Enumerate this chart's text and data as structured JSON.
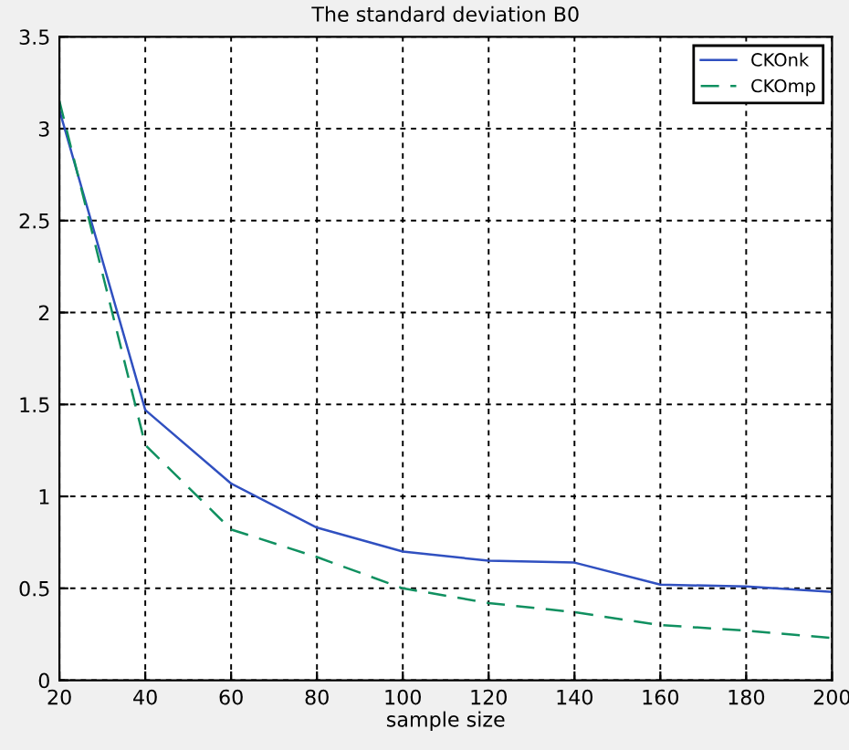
{
  "chart_data": {
    "type": "line",
    "title": "The standard deviation B0",
    "xlabel": "sample size",
    "x": [
      20,
      40,
      60,
      80,
      100,
      120,
      140,
      160,
      180,
      200
    ],
    "series": [
      {
        "name": "CKOnk",
        "color": "#3050c0",
        "line_style": "solid",
        "values": [
          3.1,
          1.47,
          1.07,
          0.83,
          0.7,
          0.65,
          0.64,
          0.52,
          0.51,
          0.48
        ]
      },
      {
        "name": "CKOmp",
        "color": "#109060",
        "line_style": "dashed",
        "values": [
          3.15,
          1.28,
          0.82,
          0.67,
          0.5,
          0.42,
          0.37,
          0.3,
          0.27,
          0.23
        ]
      }
    ],
    "xlim": [
      20,
      200
    ],
    "xticks": [
      20,
      40,
      60,
      80,
      100,
      120,
      140,
      160,
      180,
      200
    ],
    "ylim": [
      0,
      3.5
    ],
    "yticks": [
      0,
      0.5,
      1,
      1.5,
      2,
      2.5,
      3,
      3.5
    ],
    "grid": true,
    "legend": "top right",
    "marker": "none"
  }
}
